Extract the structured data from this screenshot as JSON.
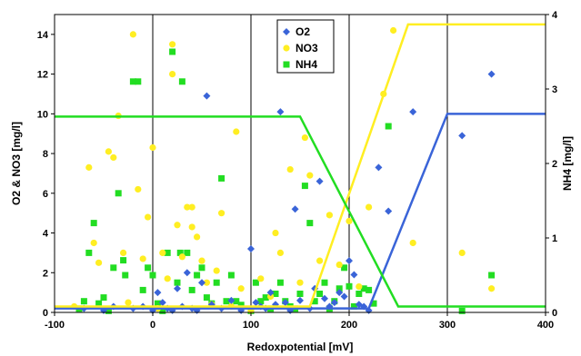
{
  "chart_data": {
    "type": "scatter",
    "xlabel": "Redoxpotential [mV]",
    "ylabel_left": "O2 & NO3 [mg/l]",
    "ylabel_right": "NH4 [mg/l]",
    "xlim": [
      -100,
      400
    ],
    "ylim_left": [
      0,
      15
    ],
    "ylim_right": [
      0,
      4
    ],
    "x_ticks": [
      -100,
      0,
      100,
      200,
      300,
      400
    ],
    "y_left_ticks": [
      0,
      2,
      4,
      6,
      8,
      10,
      12,
      14
    ],
    "y_right_ticks": [
      0,
      1,
      2,
      3,
      4
    ],
    "vertical_gridlines": [
      0,
      100,
      200,
      300
    ],
    "legend_position": "top-center",
    "series": [
      {
        "name": "O2",
        "marker": "diamond",
        "color": "#3a64d8",
        "axis": "left",
        "points": [
          [
            -70,
            0.2
          ],
          [
            -50,
            0.1
          ],
          [
            -40,
            0.3
          ],
          [
            -20,
            0.2
          ],
          [
            -10,
            0.3
          ],
          [
            0,
            0.1
          ],
          [
            5,
            1.0
          ],
          [
            10,
            0.5
          ],
          [
            15,
            0.2
          ],
          [
            20,
            0.1
          ],
          [
            25,
            1.2
          ],
          [
            30,
            0.3
          ],
          [
            35,
            2.0
          ],
          [
            40,
            0.2
          ],
          [
            45,
            0.1
          ],
          [
            50,
            1.5
          ],
          [
            55,
            10.9
          ],
          [
            60,
            0.4
          ],
          [
            70,
            0.2
          ],
          [
            80,
            0.6
          ],
          [
            90,
            0.1
          ],
          [
            100,
            3.2
          ],
          [
            105,
            0.5
          ],
          [
            110,
            0.3
          ],
          [
            115,
            0.2
          ],
          [
            120,
            1.0
          ],
          [
            125,
            0.4
          ],
          [
            130,
            10.1
          ],
          [
            135,
            0.5
          ],
          [
            140,
            0.1
          ],
          [
            145,
            5.2
          ],
          [
            150,
            0.6
          ],
          [
            160,
            0.2
          ],
          [
            165,
            1.2
          ],
          [
            170,
            6.6
          ],
          [
            175,
            0.7
          ],
          [
            180,
            0.3
          ],
          [
            185,
            0.5
          ],
          [
            190,
            1.0
          ],
          [
            195,
            0.8
          ],
          [
            200,
            2.6
          ],
          [
            205,
            1.9
          ],
          [
            210,
            0.4
          ],
          [
            215,
            0.3
          ],
          [
            220,
            0.1
          ],
          [
            230,
            7.3
          ],
          [
            240,
            5.1
          ],
          [
            265,
            10.1
          ],
          [
            315,
            8.9
          ],
          [
            345,
            12.0
          ]
        ]
      },
      {
        "name": "NO3",
        "marker": "circle",
        "color": "#ffee22",
        "axis": "left",
        "points": [
          [
            -80,
            0.3
          ],
          [
            -65,
            7.3
          ],
          [
            -60,
            3.5
          ],
          [
            -55,
            2.5
          ],
          [
            -45,
            8.1
          ],
          [
            -40,
            7.8
          ],
          [
            -35,
            9.9
          ],
          [
            -30,
            3.0
          ],
          [
            -25,
            0.5
          ],
          [
            -20,
            14.0
          ],
          [
            -15,
            6.2
          ],
          [
            -10,
            2.7
          ],
          [
            -5,
            4.8
          ],
          [
            0,
            8.3
          ],
          [
            5,
            0.2
          ],
          [
            10,
            3.0
          ],
          [
            15,
            1.7
          ],
          [
            20,
            13.5
          ],
          [
            20,
            12.0
          ],
          [
            25,
            4.4
          ],
          [
            30,
            2.8
          ],
          [
            35,
            5.3
          ],
          [
            40,
            5.3
          ],
          [
            40,
            4.3
          ],
          [
            45,
            3.8
          ],
          [
            50,
            2.6
          ],
          [
            55,
            1.5
          ],
          [
            60,
            0.4
          ],
          [
            65,
            2.1
          ],
          [
            70,
            5.0
          ],
          [
            80,
            0.3
          ],
          [
            85,
            9.1
          ],
          [
            90,
            1.2
          ],
          [
            100,
            0.1
          ],
          [
            110,
            1.7
          ],
          [
            120,
            0.8
          ],
          [
            125,
            4.0
          ],
          [
            130,
            3.0
          ],
          [
            140,
            7.2
          ],
          [
            150,
            1.5
          ],
          [
            155,
            8.8
          ],
          [
            160,
            6.9
          ],
          [
            170,
            2.6
          ],
          [
            180,
            4.9
          ],
          [
            190,
            2.4
          ],
          [
            200,
            4.6
          ],
          [
            210,
            1.3
          ],
          [
            220,
            5.3
          ],
          [
            235,
            11.0
          ],
          [
            245,
            14.2
          ],
          [
            265,
            3.5
          ],
          [
            315,
            3.0
          ],
          [
            345,
            1.2
          ]
        ]
      },
      {
        "name": "NH4",
        "marker": "square",
        "color": "#22dd22",
        "axis": "right",
        "points": [
          [
            -75,
            0.05
          ],
          [
            -70,
            0.15
          ],
          [
            -65,
            0.8
          ],
          [
            -60,
            1.2
          ],
          [
            -55,
            0.12
          ],
          [
            -50,
            0.2
          ],
          [
            -45,
            0.02
          ],
          [
            -40,
            0.6
          ],
          [
            -35,
            1.6
          ],
          [
            -30,
            0.7
          ],
          [
            -28,
            0.5
          ],
          [
            -20,
            3.1
          ],
          [
            -15,
            3.1
          ],
          [
            -10,
            0.3
          ],
          [
            -5,
            0.6
          ],
          [
            0,
            0.5
          ],
          [
            5,
            0.12
          ],
          [
            10,
            0.02
          ],
          [
            15,
            0.8
          ],
          [
            20,
            3.5
          ],
          [
            25,
            0.4
          ],
          [
            28,
            0.8
          ],
          [
            30,
            3.1
          ],
          [
            35,
            0.8
          ],
          [
            40,
            0.3
          ],
          [
            45,
            0.5
          ],
          [
            50,
            0.6
          ],
          [
            55,
            0.2
          ],
          [
            60,
            0.12
          ],
          [
            65,
            0.4
          ],
          [
            70,
            1.8
          ],
          [
            75,
            0.15
          ],
          [
            80,
            0.5
          ],
          [
            85,
            0.15
          ],
          [
            90,
            0.1
          ],
          [
            100,
            0.02
          ],
          [
            105,
            0.4
          ],
          [
            110,
            0.15
          ],
          [
            115,
            0.2
          ],
          [
            120,
            0.05
          ],
          [
            125,
            0.25
          ],
          [
            130,
            0.4
          ],
          [
            135,
            0.15
          ],
          [
            140,
            0.08
          ],
          [
            145,
            0.05
          ],
          [
            150,
            0.25
          ],
          [
            155,
            1.7
          ],
          [
            160,
            1.2
          ],
          [
            165,
            0.15
          ],
          [
            170,
            0.25
          ],
          [
            175,
            0.4
          ],
          [
            180,
            0.05
          ],
          [
            185,
            0.15
          ],
          [
            190,
            0.32
          ],
          [
            195,
            0.6
          ],
          [
            200,
            0.35
          ],
          [
            205,
            0.08
          ],
          [
            210,
            0.25
          ],
          [
            215,
            0.32
          ],
          [
            220,
            0.3
          ],
          [
            225,
            0.12
          ],
          [
            240,
            2.5
          ],
          [
            315,
            0.02
          ],
          [
            345,
            0.5
          ]
        ]
      }
    ],
    "lines": [
      {
        "name": "O2",
        "color": "#3a64d8",
        "axis": "left",
        "points": [
          [
            -100,
            0.2
          ],
          [
            220,
            0.2
          ],
          [
            300,
            10.0
          ],
          [
            400,
            10.0
          ]
        ]
      },
      {
        "name": "NO3",
        "color": "#ffee22",
        "axis": "left",
        "points": [
          [
            -100,
            0.3
          ],
          [
            160,
            0.3
          ],
          [
            260,
            14.5
          ],
          [
            400,
            14.5
          ]
        ]
      },
      {
        "name": "NH4",
        "color": "#22dd22",
        "axis": "right",
        "points": [
          [
            -100,
            2.63
          ],
          [
            150,
            2.63
          ],
          [
            250,
            0.08
          ],
          [
            400,
            0.08
          ]
        ]
      }
    ]
  }
}
